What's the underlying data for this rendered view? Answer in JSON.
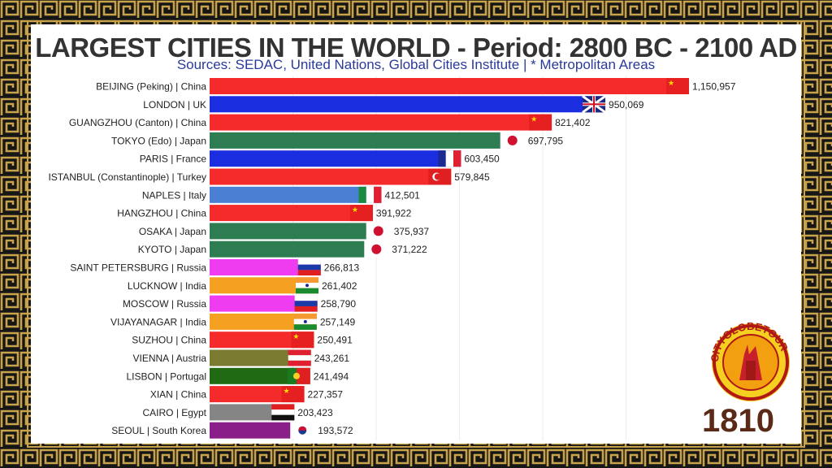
{
  "title": "LARGEST CITIES IN THE WORLD - Period: 2800 BC - 2100 AD",
  "subtitle": "Sources: SEDAC, United Nations, Global Cities Institute | * Metropolitan Areas",
  "year": "1810",
  "logo_text": "CITYGLOBETOUR",
  "colors": {
    "frame_gold": "#c9a34a",
    "year": "#5a2a16",
    "subtitle": "#2a3a9a"
  },
  "chart_data": {
    "type": "bar",
    "orientation": "horizontal",
    "categories": [
      "BEIJING (Peking) | China",
      "LONDON | UK",
      "GUANGZHOU (Canton) | China",
      "TOKYO (Edo) | Japan",
      "PARIS | France",
      "ISTANBUL (Constantinople) | Turkey",
      "NAPLES | Italy",
      "HANGZHOU | China",
      "OSAKA | Japan",
      "KYOTO | Japan",
      "SAINT PETERSBURG | Russia",
      "LUCKNOW | India",
      "MOSCOW | Russia",
      "VIJAYANAGAR | India",
      "SUZHOU | China",
      "VIENNA | Austria",
      "LISBON | Portugal",
      "XIAN | China",
      "CAIRO | Egypt",
      "SEOUL | South Korea"
    ],
    "values": [
      1150957,
      950069,
      821402,
      697795,
      603450,
      579845,
      412501,
      391922,
      375937,
      371222,
      266813,
      261402,
      258790,
      257149,
      250491,
      243261,
      241494,
      227357,
      203423,
      193572
    ],
    "value_labels": [
      "1,150,957",
      "950,069",
      "821,402",
      "697,795",
      "603,450",
      "579,845",
      "412,501",
      "391,922",
      "375,937",
      "371,222",
      "266,813",
      "261,402",
      "258,790",
      "257,149",
      "250,491",
      "243,261",
      "241,494",
      "227,357",
      "203,423",
      "193,572"
    ],
    "bar_colors": [
      "#f52a2a",
      "#1a2ee0",
      "#f52a2a",
      "#2e7d52",
      "#1a2ee0",
      "#f52a2a",
      "#4a7fd4",
      "#f52a2a",
      "#2e7d52",
      "#2e7d52",
      "#f03cf0",
      "#f5a020",
      "#f03cf0",
      "#f5a020",
      "#f52a2a",
      "#7a7a30",
      "#1f6a12",
      "#f52a2a",
      "#858585",
      "#8a1f8a"
    ],
    "flags": [
      "china-flag-icon",
      "uk-flag-icon",
      "china-flag-icon",
      "japan-flag-icon",
      "france-flag-icon",
      "turkey-flag-icon",
      "italy-flag-icon",
      "china-flag-icon",
      "japan-flag-icon",
      "japan-flag-icon",
      "russia-flag-icon",
      "india-flag-icon",
      "russia-flag-icon",
      "india-flag-icon",
      "china-flag-icon",
      "austria-flag-icon",
      "portugal-flag-icon",
      "china-flag-icon",
      "egypt-flag-icon",
      "korea-flag-icon"
    ],
    "xlim": [
      0,
      1150957
    ],
    "grid": true
  }
}
